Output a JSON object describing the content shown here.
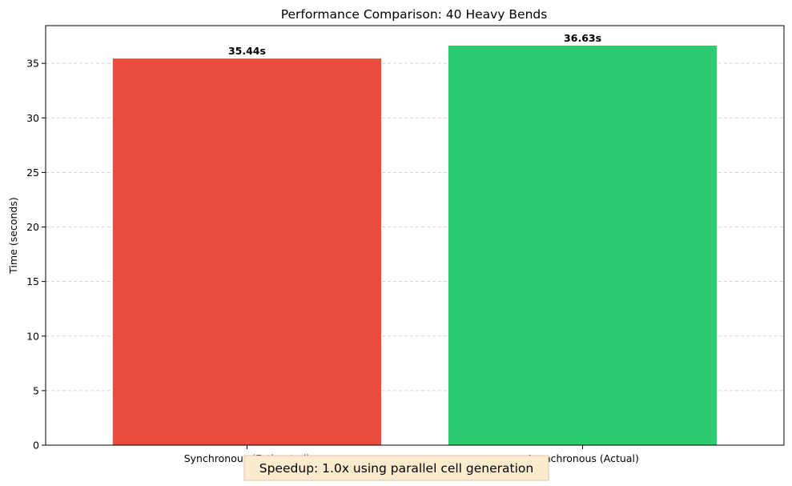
{
  "chart_data": {
    "type": "bar",
    "title": "Performance Comparison: 40 Heavy Bends",
    "xlabel": "",
    "ylabel": "Time (seconds)",
    "categories": [
      "Synchronous (Estimated)",
      "Asynchronous (Actual)"
    ],
    "values": [
      35.44,
      36.63
    ],
    "value_labels": [
      "35.44s",
      "36.63s"
    ],
    "colors": [
      "#e74c3c",
      "#2ecc71"
    ],
    "ylim": [
      0,
      38.46
    ],
    "yticks": [
      0,
      5,
      10,
      15,
      20,
      25,
      30,
      35
    ],
    "grid": "y-dashed",
    "annotation": "Speedup: 1.0x using parallel cell generation",
    "annotation_background": "#fdebd0"
  }
}
